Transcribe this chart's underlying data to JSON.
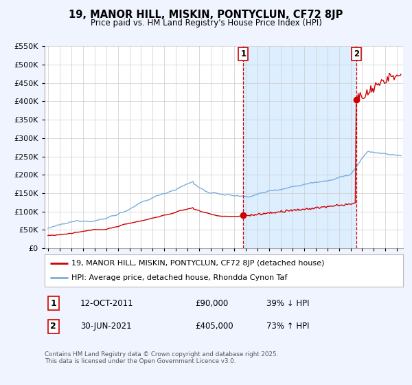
{
  "title": "19, MANOR HILL, MISKIN, PONTYCLUN, CF72 8JP",
  "subtitle": "Price paid vs. HM Land Registry's House Price Index (HPI)",
  "legend_line1": "19, MANOR HILL, MISKIN, PONTYCLUN, CF72 8JP (detached house)",
  "legend_line2": "HPI: Average price, detached house, Rhondda Cynon Taf",
  "footer": "Contains HM Land Registry data © Crown copyright and database right 2025.\nThis data is licensed under the Open Government Licence v3.0.",
  "price_color": "#cc0000",
  "hpi_color": "#7aaddb",
  "shade_color": "#ddeeff",
  "annotation_color": "#cc0000",
  "bg_color": "#f0f4ff",
  "plot_bg": "#ffffff",
  "ylim": [
    0,
    550000
  ],
  "yticks": [
    0,
    50000,
    100000,
    150000,
    200000,
    250000,
    300000,
    350000,
    400000,
    450000,
    500000,
    550000
  ],
  "xlim_start": 1994.7,
  "xlim_end": 2025.5,
  "marker1_x": 2011.78,
  "marker1_y": 90000,
  "marker2_x": 2021.5,
  "marker2_y": 405000,
  "vline1_x": 2011.78,
  "vline2_x": 2021.5,
  "annotation1_date": "12-OCT-2011",
  "annotation1_price": "£90,000",
  "annotation1_hpi": "39% ↓ HPI",
  "annotation2_date": "30-JUN-2021",
  "annotation2_price": "£405,000",
  "annotation2_hpi": "73% ↑ HPI",
  "grid_color": "#cccccc",
  "box_edge_color": "#cc0000"
}
